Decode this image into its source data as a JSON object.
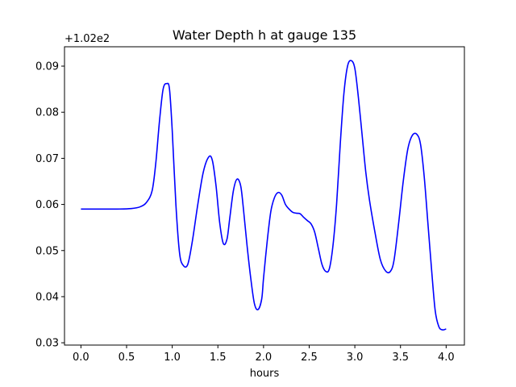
{
  "chart_data": {
    "type": "line",
    "title": "Water Depth h at gauge 135",
    "xlabel": "hours",
    "ylabel": "",
    "y_offset_label": "+1.02e2",
    "xlim": [
      -0.18,
      4.2
    ],
    "ylim": [
      0.0295,
      0.0942
    ],
    "x_ticks": [
      0.0,
      0.5,
      1.0,
      1.5,
      2.0,
      2.5,
      3.0,
      3.5,
      4.0
    ],
    "x_tick_labels": [
      "0.0",
      "0.5",
      "1.0",
      "1.5",
      "2.0",
      "2.5",
      "3.0",
      "3.5",
      "4.0"
    ],
    "y_ticks": [
      0.03,
      0.04,
      0.05,
      0.06,
      0.07,
      0.08,
      0.09
    ],
    "y_tick_labels": [
      "0.03",
      "0.04",
      "0.05",
      "0.06",
      "0.07",
      "0.08",
      "0.09"
    ],
    "grid": false,
    "series": [
      {
        "color": "#0000ff",
        "x": [
          0.0,
          0.2,
          0.4,
          0.55,
          0.65,
          0.72,
          0.78,
          0.82,
          0.86,
          0.9,
          0.94,
          0.97,
          1.0,
          1.04,
          1.08,
          1.12,
          1.17,
          1.22,
          1.28,
          1.34,
          1.4,
          1.44,
          1.48,
          1.52,
          1.56,
          1.6,
          1.63,
          1.67,
          1.71,
          1.75,
          1.78,
          1.82,
          1.86,
          1.9,
          1.94,
          1.98,
          2.0,
          2.04,
          2.08,
          2.12,
          2.16,
          2.2,
          2.24,
          2.28,
          2.32,
          2.36,
          2.4,
          2.44,
          2.48,
          2.52,
          2.56,
          2.6,
          2.64,
          2.68,
          2.72,
          2.76,
          2.8,
          2.84,
          2.88,
          2.92,
          2.96,
          3.0,
          3.04,
          3.08,
          3.12,
          3.16,
          3.22,
          3.28,
          3.34,
          3.39,
          3.43,
          3.48,
          3.53,
          3.58,
          3.63,
          3.68,
          3.72,
          3.76,
          3.8,
          3.84,
          3.88,
          3.92,
          3.96,
          4.0
        ],
        "values": [
          0.059,
          0.059,
          0.059,
          0.0591,
          0.0595,
          0.0605,
          0.063,
          0.069,
          0.078,
          0.085,
          0.0862,
          0.085,
          0.076,
          0.06,
          0.0495,
          0.0468,
          0.047,
          0.052,
          0.06,
          0.067,
          0.0703,
          0.0695,
          0.064,
          0.056,
          0.0515,
          0.0525,
          0.057,
          0.063,
          0.0655,
          0.064,
          0.059,
          0.051,
          0.044,
          0.0385,
          0.0372,
          0.0395,
          0.044,
          0.052,
          0.0585,
          0.0615,
          0.0626,
          0.062,
          0.06,
          0.059,
          0.0583,
          0.0581,
          0.058,
          0.0572,
          0.0565,
          0.0558,
          0.054,
          0.0505,
          0.047,
          0.0455,
          0.046,
          0.051,
          0.06,
          0.073,
          0.084,
          0.09,
          0.0912,
          0.0895,
          0.083,
          0.075,
          0.067,
          0.061,
          0.054,
          0.048,
          0.0455,
          0.0455,
          0.048,
          0.056,
          0.065,
          0.072,
          0.075,
          0.0752,
          0.073,
          0.066,
          0.056,
          0.046,
          0.037,
          0.0335,
          0.0328,
          0.033
        ]
      }
    ]
  }
}
